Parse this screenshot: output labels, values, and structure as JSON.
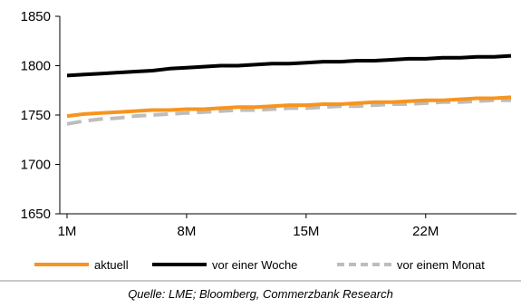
{
  "chart_data": {
    "type": "line",
    "x": [
      "1M",
      "2M",
      "3M",
      "4M",
      "5M",
      "6M",
      "7M",
      "8M",
      "9M",
      "10M",
      "11M",
      "12M",
      "13M",
      "14M",
      "15M",
      "16M",
      "17M",
      "18M",
      "19M",
      "20M",
      "21M",
      "22M",
      "23M",
      "24M",
      "25M",
      "26M",
      "27M"
    ],
    "x_ticks": [
      "1M",
      "8M",
      "15M",
      "22M"
    ],
    "ylim": [
      1650,
      1850
    ],
    "y_ticks": [
      "1850",
      "1800",
      "1750",
      "1700",
      "1650"
    ],
    "grid": false,
    "legend_position": "bottom",
    "series": [
      {
        "name": "aktuell",
        "color": "#F7941D",
        "dash": "solid",
        "values": [
          1749,
          1751,
          1752,
          1753,
          1754,
          1755,
          1755,
          1756,
          1756,
          1757,
          1758,
          1758,
          1759,
          1760,
          1760,
          1761,
          1761,
          1762,
          1763,
          1763,
          1764,
          1765,
          1765,
          1766,
          1767,
          1767,
          1768
        ]
      },
      {
        "name": "vor einer Woche",
        "color": "#000000",
        "dash": "solid",
        "values": [
          1790,
          1791,
          1792,
          1793,
          1794,
          1795,
          1797,
          1798,
          1799,
          1800,
          1800,
          1801,
          1802,
          1802,
          1803,
          1804,
          1804,
          1805,
          1805,
          1806,
          1807,
          1807,
          1808,
          1808,
          1809,
          1809,
          1810
        ]
      },
      {
        "name": "vor einem Monat",
        "color": "#BDBDBD",
        "dash": "dashed",
        "values": [
          1741,
          1744,
          1746,
          1747,
          1749,
          1750,
          1751,
          1752,
          1753,
          1754,
          1755,
          1755,
          1756,
          1757,
          1757,
          1758,
          1759,
          1759,
          1760,
          1761,
          1761,
          1762,
          1763,
          1763,
          1764,
          1765,
          1765
        ]
      }
    ]
  },
  "source": "Quelle: LME; Bloomberg, Commerzbank Research"
}
